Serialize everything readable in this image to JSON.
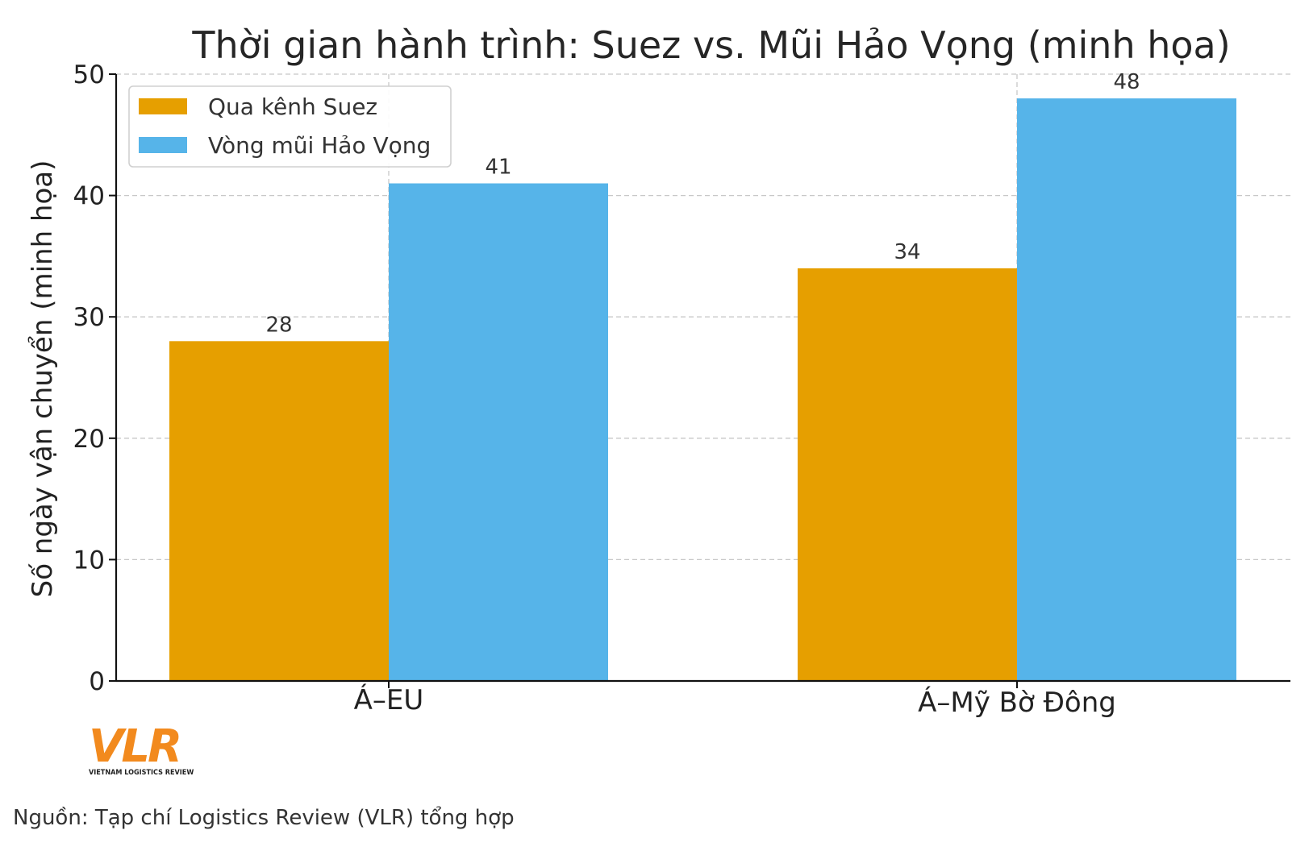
{
  "chart_data": {
    "type": "bar",
    "title": "Thời gian hành trình: Suez vs. Mũi Hảo Vọng (minh họa)",
    "xlabel": "",
    "ylabel": "Số ngày vận chuyển (minh họa)",
    "categories": [
      "Á–EU",
      "Á–Mỹ Bờ Đông"
    ],
    "series": [
      {
        "name": "Qua kênh Suez",
        "values": [
          28,
          34
        ],
        "color": "#E69F00"
      },
      {
        "name": "Vòng mũi Hảo Vọng",
        "values": [
          41,
          48
        ],
        "color": "#56B4E9"
      }
    ],
    "ylim": [
      0,
      50
    ],
    "yticks": [
      0,
      10,
      20,
      30,
      40,
      50
    ],
    "grid": true,
    "legend_position": "top-left",
    "data_labels": true
  },
  "logo": {
    "mark": "VLR",
    "tagline": "VIETNAM LOGISTICS REVIEW"
  },
  "source": "Nguồn: Tạp chí Logistics Review (VLR) tổng hợp"
}
